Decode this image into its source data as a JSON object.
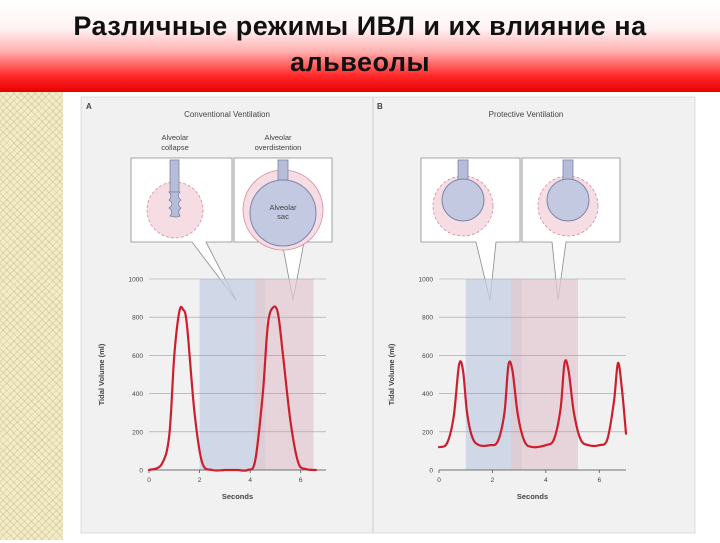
{
  "slide": {
    "title_line1": "Различные режимы ИВЛ и их влияние на",
    "title_line2": "альвеолы"
  },
  "colors": {
    "curve": "#cc1f2e",
    "panel_bg": "#f1f1f2",
    "shade_blue": "#c4cde3",
    "shade_pink": "#e2c9d1",
    "title_gradient_end": "#e80000"
  },
  "panel_a": {
    "letter": "A",
    "title": "Conventional Ventilation",
    "callout_left": [
      "Alveolar",
      "collapse"
    ],
    "callout_right": [
      "Alveolar",
      "overdistention"
    ],
    "sac_label": [
      "Alveolar",
      "sac"
    ],
    "shaded_regions_seconds": [
      [
        2.0,
        4.6
      ],
      [
        4.2,
        6.5
      ]
    ]
  },
  "panel_b": {
    "letter": "B",
    "title": "Protective Ventilation",
    "shaded_regions_seconds": [
      [
        1.0,
        3.1
      ],
      [
        2.7,
        5.2
      ]
    ]
  },
  "chart_data": [
    {
      "type": "line",
      "panel": "A",
      "xlabel": "Seconds",
      "ylabel": "Tidal Volume (ml)",
      "xlim": [
        0,
        7
      ],
      "ylim": [
        0,
        1000
      ],
      "x_ticks": [
        "0",
        "2",
        "4",
        "6"
      ],
      "y_ticks": [
        "0",
        "200",
        "400",
        "600",
        "800",
        "1000"
      ],
      "grid": "horizontal",
      "series": [
        {
          "x": [
            0,
            0.5,
            0.8,
            1.0,
            1.2,
            1.35,
            1.5,
            1.8,
            2.1,
            2.5,
            3.0,
            3.5,
            3.9,
            4.2,
            4.5,
            4.7,
            4.9,
            5.1,
            5.3,
            5.6,
            5.9,
            6.2,
            6.6
          ],
          "y": [
            0,
            30,
            180,
            600,
            830,
            840,
            760,
            300,
            40,
            0,
            0,
            0,
            0,
            50,
            400,
            760,
            850,
            820,
            600,
            250,
            40,
            5,
            0
          ]
        }
      ]
    },
    {
      "type": "line",
      "panel": "B",
      "xlabel": "Seconds",
      "ylabel": "Tidal Volume (ml)",
      "xlim": [
        0,
        7
      ],
      "ylim": [
        0,
        1000
      ],
      "x_ticks": [
        "0",
        "2",
        "4",
        "6"
      ],
      "y_ticks": [
        "0",
        "200",
        "400",
        "600",
        "800",
        "1000"
      ],
      "grid": "horizontal",
      "series": [
        {
          "x": [
            0,
            0.3,
            0.55,
            0.75,
            0.9,
            1.05,
            1.25,
            1.5,
            1.9,
            2.2,
            2.45,
            2.6,
            2.75,
            2.95,
            3.2,
            3.5,
            4.0,
            4.3,
            4.55,
            4.7,
            4.85,
            5.05,
            5.3,
            5.6,
            6.0,
            6.3,
            6.55,
            6.7,
            6.85,
            7.0
          ],
          "y": [
            120,
            140,
            280,
            550,
            520,
            300,
            170,
            130,
            130,
            150,
            300,
            550,
            520,
            290,
            150,
            120,
            130,
            160,
            320,
            560,
            520,
            300,
            160,
            130,
            130,
            160,
            360,
            560,
            420,
            190
          ]
        }
      ]
    }
  ]
}
